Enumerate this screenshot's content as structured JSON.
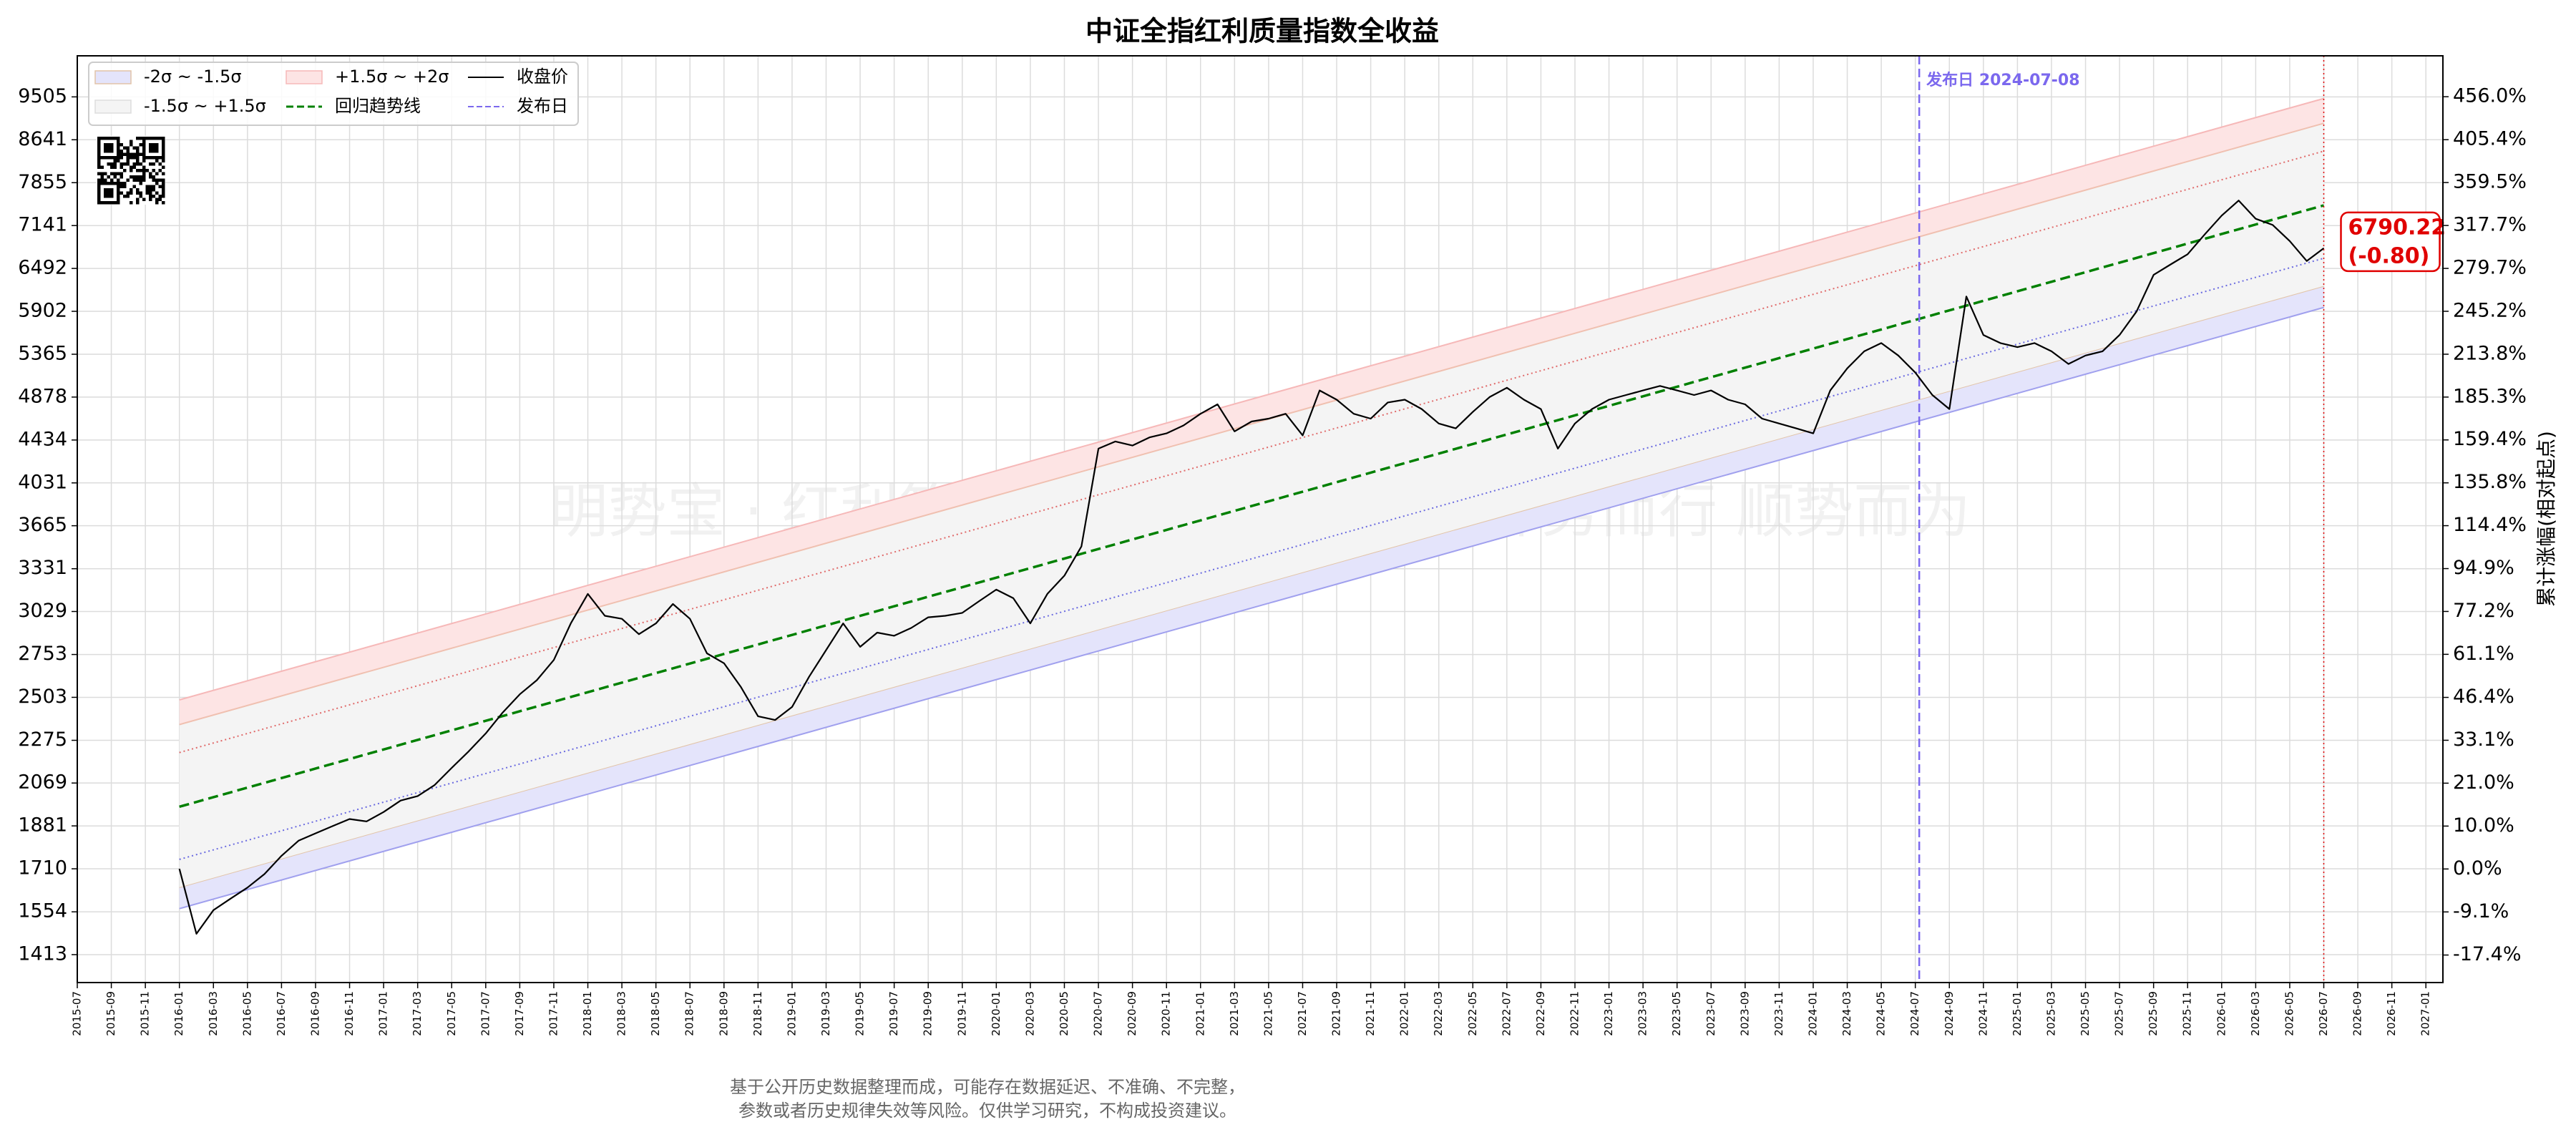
{
  "chart_data": {
    "type": "line",
    "title": "中证全指红利质量指数全收益",
    "y2_label": "累计涨幅(相对起点)",
    "watermark": "明势宝 · 红利策略指数趋势温度计 · 择势而行 顺势而为",
    "scale": "log",
    "y2_scale": "log",
    "grid": true,
    "xlim": [
      "2015-07",
      "2027-02"
    ],
    "xticks": [
      "2015-07",
      "2015-09",
      "2015-11",
      "2016-01",
      "2016-03",
      "2016-05",
      "2016-07",
      "2016-09",
      "2016-11",
      "2017-01",
      "2017-03",
      "2017-05",
      "2017-07",
      "2017-09",
      "2017-11",
      "2018-01",
      "2018-03",
      "2018-05",
      "2018-07",
      "2018-09",
      "2018-11",
      "2019-01",
      "2019-03",
      "2019-05",
      "2019-07",
      "2019-09",
      "2019-11",
      "2020-01",
      "2020-03",
      "2020-05",
      "2020-07",
      "2020-09",
      "2020-11",
      "2021-01",
      "2021-03",
      "2021-05",
      "2021-07",
      "2021-09",
      "2021-11",
      "2022-01",
      "2022-03",
      "2022-05",
      "2022-07",
      "2022-09",
      "2022-11",
      "2023-01",
      "2023-03",
      "2023-05",
      "2023-07",
      "2023-09",
      "2023-11",
      "2024-01",
      "2024-03",
      "2024-05",
      "2024-07",
      "2024-09",
      "2024-11",
      "2025-01",
      "2025-03",
      "2025-05",
      "2025-07",
      "2025-09",
      "2025-11",
      "2026-01",
      "2026-03",
      "2026-05",
      "2026-07",
      "2026-09",
      "2026-11",
      "2027-01"
    ],
    "ylim": [
      1328,
      10413
    ],
    "yticks": [
      9505,
      8641,
      7855,
      7141,
      6492,
      5902,
      5365,
      4878,
      4434,
      4031,
      3665,
      3331,
      3029,
      2753,
      2503,
      2275,
      2069,
      1881,
      1710,
      1554,
      1413
    ],
    "y2lim": [
      -22.3,
      508.9
    ],
    "y2ticks": [
      {
        "value": 456.0,
        "label": "456.0%"
      },
      {
        "value": 405.4,
        "label": "405.4%"
      },
      {
        "value": 359.5,
        "label": "359.5%"
      },
      {
        "value": 317.7,
        "label": "317.7%"
      },
      {
        "value": 279.7,
        "label": "279.7%"
      },
      {
        "value": 245.2,
        "label": "245.2%"
      },
      {
        "value": 213.8,
        "label": "213.8%"
      },
      {
        "value": 185.3,
        "label": "185.3%"
      },
      {
        "value": 159.4,
        "label": "159.4%"
      },
      {
        "value": 135.8,
        "label": "135.8%"
      },
      {
        "value": 114.4,
        "label": "114.4%"
      },
      {
        "value": 94.9,
        "label": "94.9%"
      },
      {
        "value": 77.2,
        "label": "77.2%"
      },
      {
        "value": 61.1,
        "label": "61.1%"
      },
      {
        "value": 46.4,
        "label": "46.4%"
      },
      {
        "value": 33.1,
        "label": "33.1%"
      },
      {
        "value": 21.0,
        "label": "21.0%"
      },
      {
        "value": 10.0,
        "label": "10.0%"
      },
      {
        "value": 0.0,
        "label": "0.0%"
      },
      {
        "value": -9.1,
        "label": "-9.1%"
      },
      {
        "value": -17.4,
        "label": "-17.4%"
      }
    ],
    "bands": [
      {
        "name": "-2σ ~ -1.5σ",
        "color": "#e4e4fb",
        "edge_colors": [
          "#a0a0ee",
          "#e2c4a8"
        ],
        "x": [
          "2016-01",
          "2026-07"
        ],
        "lower": [
          1565,
          5953
        ],
        "upper": [
          1641,
          6244
        ]
      },
      {
        "name": "-1.5σ ~ +1.5σ",
        "color": "#f4f4f4",
        "x": [
          "2016-01",
          "2026-07"
        ],
        "lower": [
          1641,
          6244
        ],
        "upper": [
          2356,
          8963
        ]
      },
      {
        "name": "+1.5σ ~ +2σ",
        "color": "#fde4e4",
        "edge_colors": [
          "#f0c0b0",
          "#f6b8b8"
        ],
        "x": [
          "2016-01",
          "2026-07"
        ],
        "lower": [
          2356,
          8963
        ],
        "upper": [
          2489,
          9471
        ]
      }
    ],
    "sigma_lines": [
      {
        "color": "#e06a6a",
        "x": [
          "2016-01",
          "2026-07"
        ],
        "values": [
          2214,
          8425
        ]
      },
      {
        "color": "#6a6ae0",
        "x": [
          "2016-01",
          "2026-07"
        ],
        "values": [
          1746,
          6640
        ]
      }
    ],
    "trend": {
      "name": "回归趋势线",
      "color": "#008000",
      "x": [
        "2016-01",
        "2026-07"
      ],
      "values": [
        1963,
        7469
      ]
    },
    "x": [
      "2016-01",
      "2016-02",
      "2016-03",
      "2016-04",
      "2016-05",
      "2016-06",
      "2016-07",
      "2016-08",
      "2016-09",
      "2016-10",
      "2016-11",
      "2016-12",
      "2017-01",
      "2017-02",
      "2017-03",
      "2017-04",
      "2017-05",
      "2017-06",
      "2017-07",
      "2017-08",
      "2017-09",
      "2017-10",
      "2017-11",
      "2017-12",
      "2018-01",
      "2018-02",
      "2018-03",
      "2018-04",
      "2018-05",
      "2018-06",
      "2018-07",
      "2018-08",
      "2018-09",
      "2018-10",
      "2018-11",
      "2018-12",
      "2019-01",
      "2019-02",
      "2019-03",
      "2019-04",
      "2019-05",
      "2019-06",
      "2019-07",
      "2019-08",
      "2019-09",
      "2019-10",
      "2019-11",
      "2019-12",
      "2020-01",
      "2020-02",
      "2020-03",
      "2020-04",
      "2020-05",
      "2020-06",
      "2020-07",
      "2020-08",
      "2020-09",
      "2020-10",
      "2020-11",
      "2020-12",
      "2021-01",
      "2021-02",
      "2021-03",
      "2021-04",
      "2021-05",
      "2021-06",
      "2021-07",
      "2021-08",
      "2021-09",
      "2021-10",
      "2021-11",
      "2021-12",
      "2022-01",
      "2022-02",
      "2022-03",
      "2022-04",
      "2022-05",
      "2022-06",
      "2022-07",
      "2022-08",
      "2022-09",
      "2022-10",
      "2022-11",
      "2022-12",
      "2023-01",
      "2023-02",
      "2023-03",
      "2023-04",
      "2023-05",
      "2023-06",
      "2023-07",
      "2023-08",
      "2023-09",
      "2023-10",
      "2023-11",
      "2023-12",
      "2024-01",
      "2024-02",
      "2024-03",
      "2024-04",
      "2024-05",
      "2024-06",
      "2024-07",
      "2024-08",
      "2024-09",
      "2024-10",
      "2024-11",
      "2024-12",
      "2025-01",
      "2025-02",
      "2025-03",
      "2025-04",
      "2025-05",
      "2025-06",
      "2025-07",
      "2025-08",
      "2025-09",
      "2025-10",
      "2025-11",
      "2025-12",
      "2026-01",
      "2026-02",
      "2026-03",
      "2026-04",
      "2026-05",
      "2026-06",
      "2026-07"
    ],
    "series": [
      {
        "name": "收盘价",
        "color": "#000000",
        "values": [
          1710,
          1480,
          1560,
          1600,
          1640,
          1690,
          1760,
          1820,
          1850,
          1880,
          1910,
          1900,
          1940,
          1990,
          2010,
          2060,
          2140,
          2220,
          2310,
          2420,
          2520,
          2600,
          2720,
          2950,
          3150,
          3000,
          2980,
          2880,
          2950,
          3080,
          2980,
          2760,
          2700,
          2560,
          2400,
          2380,
          2450,
          2620,
          2780,
          2950,
          2800,
          2890,
          2870,
          2920,
          2990,
          3000,
          3020,
          3100,
          3180,
          3120,
          2950,
          3150,
          3280,
          3500,
          4350,
          4420,
          4380,
          4460,
          4500,
          4580,
          4700,
          4800,
          4520,
          4620,
          4650,
          4700,
          4480,
          4950,
          4850,
          4700,
          4650,
          4820,
          4850,
          4750,
          4600,
          4550,
          4720,
          4880,
          4980,
          4850,
          4750,
          4350,
          4600,
          4750,
          4850,
          4900,
          4950,
          5000,
          4950,
          4900,
          4950,
          4850,
          4800,
          4650,
          4600,
          4550,
          4500,
          4950,
          5200,
          5400,
          5500,
          5350,
          5150,
          4900,
          4750,
          6100,
          5600,
          5500,
          5450,
          5500,
          5400,
          5250,
          5350,
          5400,
          5600,
          5900,
          6400,
          6550,
          6700,
          7000,
          7300,
          7550,
          7250,
          7150,
          6900,
          6600,
          6790.22
        ]
      }
    ],
    "publish": {
      "name": "发布日",
      "label": "发布日 2024-07-08",
      "x": "2024-07-08",
      "color": "#7b68ee"
    },
    "annotation": {
      "color": "#e00000",
      "lines": [
        "6790.22",
        "(-0.80)"
      ]
    },
    "footnote": [
      "基于公开历史数据整理而成，可能存在数据延迟、不准确、不完整，",
      "参数或者历史规律失效等风险。仅供学习研究，不构成投资建议。"
    ]
  }
}
